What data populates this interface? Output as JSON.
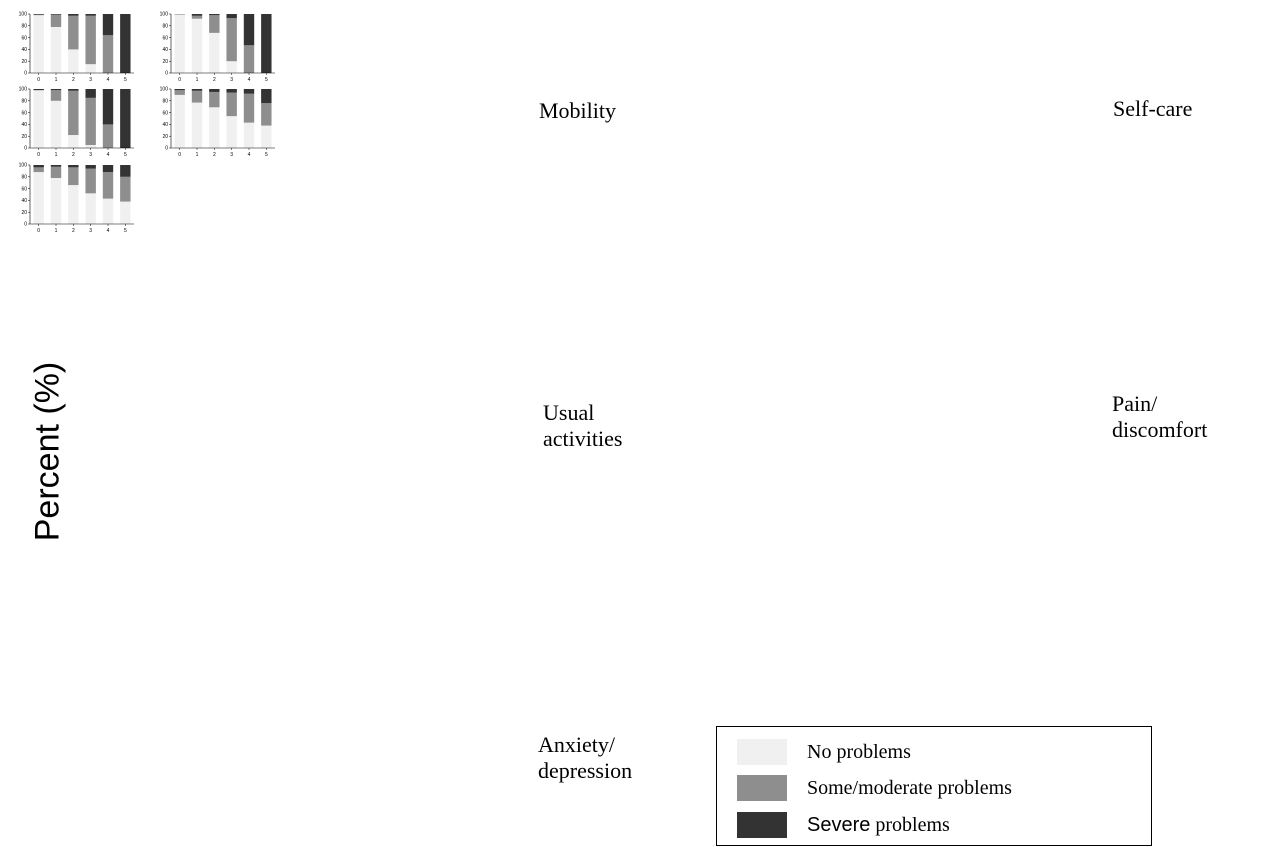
{
  "chart_data": {
    "type": "bar",
    "stacked": true,
    "ylabel": "Percent (%)",
    "ylim": [
      0,
      100
    ],
    "yticks": [
      0,
      20,
      40,
      60,
      80,
      100
    ],
    "categories": [
      "0",
      "1",
      "2",
      "3",
      "4",
      "5"
    ],
    "legend": [
      {
        "key": "none",
        "label_prefix": "",
        "label_rest": "No problems",
        "color": "#f0f0f0"
      },
      {
        "key": "some",
        "label_prefix": "",
        "label_rest": "Some/moderate problems",
        "color": "#8e8e8e"
      },
      {
        "key": "severe",
        "label_prefix": "Severe",
        "label_rest": " problems",
        "color": "#333333"
      }
    ],
    "panels": [
      {
        "label": "Mobility",
        "none": [
          98,
          78,
          40,
          15,
          0,
          0
        ],
        "some": [
          1,
          21,
          57,
          82,
          64,
          0
        ],
        "severe": [
          1,
          1,
          3,
          3,
          36,
          100
        ]
      },
      {
        "label": "Self-care",
        "none": [
          99,
          92,
          68,
          20,
          0,
          0
        ],
        "some": [
          1,
          5,
          30,
          73,
          47,
          0
        ],
        "severe": [
          0,
          3,
          2,
          7,
          53,
          100
        ]
      },
      {
        "label": "Usual\nactivities",
        "none": [
          98,
          80,
          22,
          5,
          0,
          0
        ],
        "some": [
          0,
          18,
          75,
          80,
          40,
          0
        ],
        "severe": [
          2,
          2,
          3,
          15,
          60,
          100
        ]
      },
      {
        "label": "Pain/\ndiscomfort",
        "none": [
          90,
          77,
          69,
          54,
          43,
          38
        ],
        "some": [
          8,
          20,
          26,
          40,
          49,
          38
        ],
        "severe": [
          2,
          3,
          5,
          6,
          8,
          24
        ]
      },
      {
        "label": "Anxiety/\ndepression",
        "none": [
          88,
          78,
          66,
          52,
          43,
          38
        ],
        "some": [
          8,
          19,
          30,
          42,
          45,
          42
        ],
        "severe": [
          4,
          3,
          4,
          6,
          12,
          20
        ]
      }
    ]
  }
}
